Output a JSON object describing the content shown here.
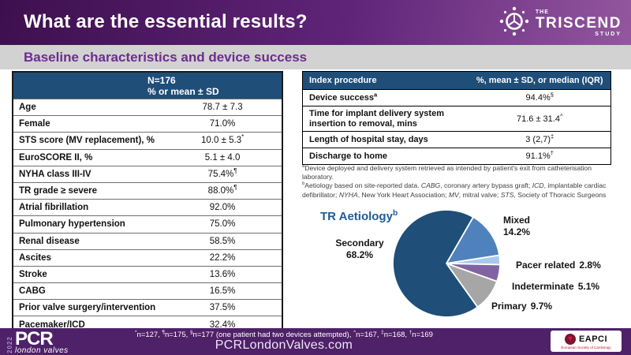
{
  "header": {
    "title": "What are the essential results?",
    "triscend_logo": {
      "the": "THE",
      "name": "TRISCEND",
      "study": "STUDY"
    }
  },
  "subtitle": "Baseline characteristics and device success",
  "baseline_table": {
    "header_line1": "N=176",
    "header_line2": "% or mean ± SD",
    "rows": [
      {
        "label": "Age",
        "value": "78.7 ± 7.3",
        "sup": ""
      },
      {
        "label": "Female",
        "value": "71.0%",
        "sup": ""
      },
      {
        "label": "STS score (MV replacement),  %",
        "value": "10.0 ± 5.3",
        "sup": "*"
      },
      {
        "label": "EuroSCORE  II, %",
        "value": "5.1 ± 4.0",
        "sup": ""
      },
      {
        "label": "NYHA class III-IV",
        "value": "75.4%",
        "sup": "¶"
      },
      {
        "label": "TR grade ≥ severe",
        "value": "88.0%",
        "sup": "¶"
      },
      {
        "label": "Atrial fibrillation",
        "value": "92.0%",
        "sup": ""
      },
      {
        "label": "Pulmonary hypertension",
        "value": "75.0%",
        "sup": ""
      },
      {
        "label": "Renal disease",
        "value": "58.5%",
        "sup": ""
      },
      {
        "label": "Ascites",
        "value": "22.2%",
        "sup": ""
      },
      {
        "label": "Stroke",
        "value": "13.6%",
        "sup": ""
      },
      {
        "label": "CABG",
        "value": "16.5%",
        "sup": ""
      },
      {
        "label": "Prior  valve surgery/intervention",
        "value": "37.5%",
        "sup": ""
      },
      {
        "label": "Pacemaker/ICD",
        "value": "32.4%",
        "sup": ""
      }
    ]
  },
  "procedure_table": {
    "col1_header": "Index procedure",
    "col2_header": "%, mean ± SD, or median (IQR)",
    "rows": [
      {
        "label": "Device success",
        "label_sup": "a",
        "value": "94.4%",
        "sup": "§",
        "tall": false
      },
      {
        "label": "Time for implant delivery system insertion to removal, mins",
        "label_sup": "",
        "value": "71.6 ± 31.4",
        "sup": "^",
        "tall": true
      },
      {
        "label": "Length of hospital stay, days",
        "label_sup": "",
        "value": "3 (2,7)",
        "sup": "‡",
        "tall": false
      },
      {
        "label": "Discharge to home",
        "label_sup": "",
        "value": "91.1%",
        "sup": "†",
        "tall": false
      }
    ]
  },
  "abbrev_note": {
    "lines": [
      [
        {
          "t": "a",
          "sup": true
        },
        {
          "t": "Device deployed and delivery system retrieved  as intended by patient's exit from catheterisation laboratory."
        }
      ],
      [
        {
          "t": "b",
          "sup": true
        },
        {
          "t": "Aetiology based on site-reported data. "
        },
        {
          "t": "CABG",
          "i": true
        },
        {
          "t": ", coronary artery bypass graft; "
        },
        {
          "t": "ICD",
          "i": true
        },
        {
          "t": ", implantable cardiac defibrillator; "
        },
        {
          "t": "NYHA",
          "i": true
        },
        {
          "t": ", New York Heart Association; "
        },
        {
          "t": "MV",
          "i": true
        },
        {
          "t": ", mitral valve; "
        },
        {
          "t": "STS",
          "i": true
        },
        {
          "t": ", Society of Thoracic Surgeons"
        }
      ]
    ]
  },
  "chart_data": {
    "type": "pie",
    "title": "TR Aetiology",
    "title_sup": "b",
    "start_angle_deg": 30,
    "draw_order": [
      "Mixed",
      "Pacer related",
      "Indeterminate",
      "Primary",
      "Secondary"
    ],
    "slices": [
      {
        "label": "Secondary",
        "value": 68.2,
        "pct_text": "68.2%",
        "color": "#1F4E79"
      },
      {
        "label": "Mixed",
        "value": 14.2,
        "pct_text": "14.2%",
        "color": "#4F81BD"
      },
      {
        "label": "Pacer related",
        "value": 2.8,
        "pct_text": "2.8%",
        "color": "#A9C9EA"
      },
      {
        "label": "Indeterminate",
        "value": 5.1,
        "pct_text": "5.1%",
        "color": "#8064A2"
      },
      {
        "label": "Primary",
        "value": 9.7,
        "pct_text": "9.7%",
        "color": "#A6A6A6"
      }
    ]
  },
  "footer": {
    "note_segments": [
      {
        "t": "*",
        "sup": true
      },
      {
        "t": "n=127, "
      },
      {
        "t": "¶",
        "sup": true
      },
      {
        "t": "n=175, "
      },
      {
        "t": "§",
        "sup": true
      },
      {
        "t": "n=177 (one patient had two devices attempted),  "
      },
      {
        "t": "^",
        "sup": true
      },
      {
        "t": "n=167,   "
      },
      {
        "t": "‡",
        "sup": true
      },
      {
        "t": "n=168,  "
      },
      {
        "t": "†",
        "sup": true
      },
      {
        "t": "n=169"
      }
    ],
    "site": "PCRLondonValves.com",
    "pcr_logo": {
      "year": "2022",
      "brand": "PCR",
      "sub": "london valves"
    },
    "eapci": {
      "name": "EAPCI",
      "heart": "♥",
      "tagline": "European Society of Cardiology"
    }
  }
}
